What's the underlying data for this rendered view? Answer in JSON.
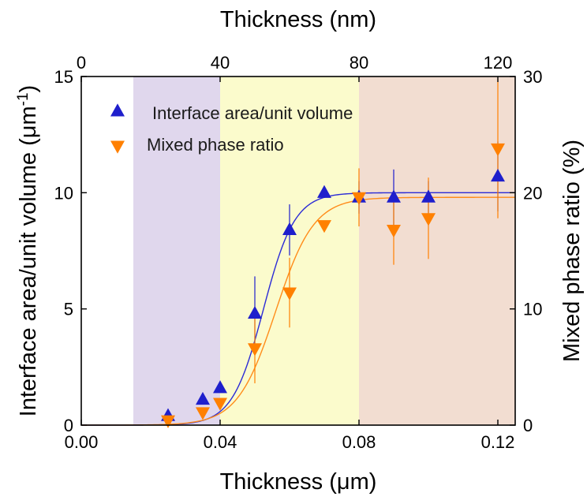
{
  "chart_data": {
    "type": "scatter",
    "top_axis": {
      "label": "Thickness (nm)",
      "range": [
        0,
        125
      ],
      "ticks": [
        "0",
        "40",
        "80",
        "120"
      ]
    },
    "bottom_axis": {
      "label_prefix": "Thickness (",
      "label_unit": "μm",
      "label_suffix": ")",
      "range": [
        0.0,
        0.125
      ],
      "ticks": [
        "0.00",
        "0.04",
        "0.08",
        "0.12"
      ]
    },
    "left_axis": {
      "label_prefix": "Interface area/unit volume (",
      "label_unit": "μm",
      "label_sup": "-1",
      "label_suffix": ")",
      "range": [
        0,
        15
      ],
      "ticks": [
        "0",
        "5",
        "10",
        "15"
      ]
    },
    "right_axis": {
      "label": "Mixed phase ratio (%)",
      "range": [
        0,
        30
      ],
      "ticks": [
        "0",
        "10",
        "20",
        "30"
      ]
    },
    "regions": [
      {
        "x_start": 0.015,
        "x_end": 0.04,
        "color": "#e0d7ed"
      },
      {
        "x_start": 0.04,
        "x_end": 0.08,
        "color": "#fbfbcc"
      },
      {
        "x_start": 0.08,
        "x_end": 0.125,
        "color": "#f2ddd1"
      }
    ],
    "series": [
      {
        "name": "Interface area/unit volume",
        "axis": "left",
        "marker": "triangle-up",
        "color": "#1f1fcc",
        "curve_color": "#2b2bd6",
        "points": [
          {
            "x": 0.025,
            "y": 0.4,
            "err": 0
          },
          {
            "x": 0.035,
            "y": 1.1,
            "err": 0
          },
          {
            "x": 0.04,
            "y": 1.6,
            "err": 0
          },
          {
            "x": 0.05,
            "y": 4.8,
            "err": 1.6
          },
          {
            "x": 0.06,
            "y": 8.4,
            "err": 1.1
          },
          {
            "x": 0.07,
            "y": 10.0,
            "err": 0
          },
          {
            "x": 0.08,
            "y": 9.8,
            "err": 0.7
          },
          {
            "x": 0.09,
            "y": 9.8,
            "err": 1.2
          },
          {
            "x": 0.1,
            "y": 9.8,
            "err": 0.7
          },
          {
            "x": 0.12,
            "y": 10.7,
            "err": 1.5
          }
        ],
        "fit": {
          "model": "logistic",
          "bottom": 0.0,
          "top": 10.0,
          "x0": 0.0525,
          "width": 0.0045
        }
      },
      {
        "name": "Mixed phase ratio",
        "axis": "right",
        "marker": "triangle-down",
        "color": "#ff8000",
        "curve_color": "#ff8c1a",
        "points": [
          {
            "x": 0.025,
            "y": 0.4,
            "err": 0
          },
          {
            "x": 0.035,
            "y": 1.1,
            "err": 0
          },
          {
            "x": 0.04,
            "y": 1.9,
            "err": 0
          },
          {
            "x": 0.05,
            "y": 6.6,
            "err": 3.0
          },
          {
            "x": 0.06,
            "y": 11.4,
            "err": 3.0
          },
          {
            "x": 0.07,
            "y": 17.2,
            "err": 0
          },
          {
            "x": 0.08,
            "y": 19.6,
            "err": 2.5
          },
          {
            "x": 0.09,
            "y": 16.8,
            "err": 3.0
          },
          {
            "x": 0.1,
            "y": 17.8,
            "err": 3.5
          },
          {
            "x": 0.12,
            "y": 23.8,
            "err": 6.0
          }
        ],
        "fit": {
          "model": "logistic",
          "bottom": 0.0,
          "top": 19.6,
          "x0": 0.056,
          "width": 0.0055
        }
      }
    ],
    "legend": {
      "placement": "top-left"
    },
    "grid": false
  }
}
